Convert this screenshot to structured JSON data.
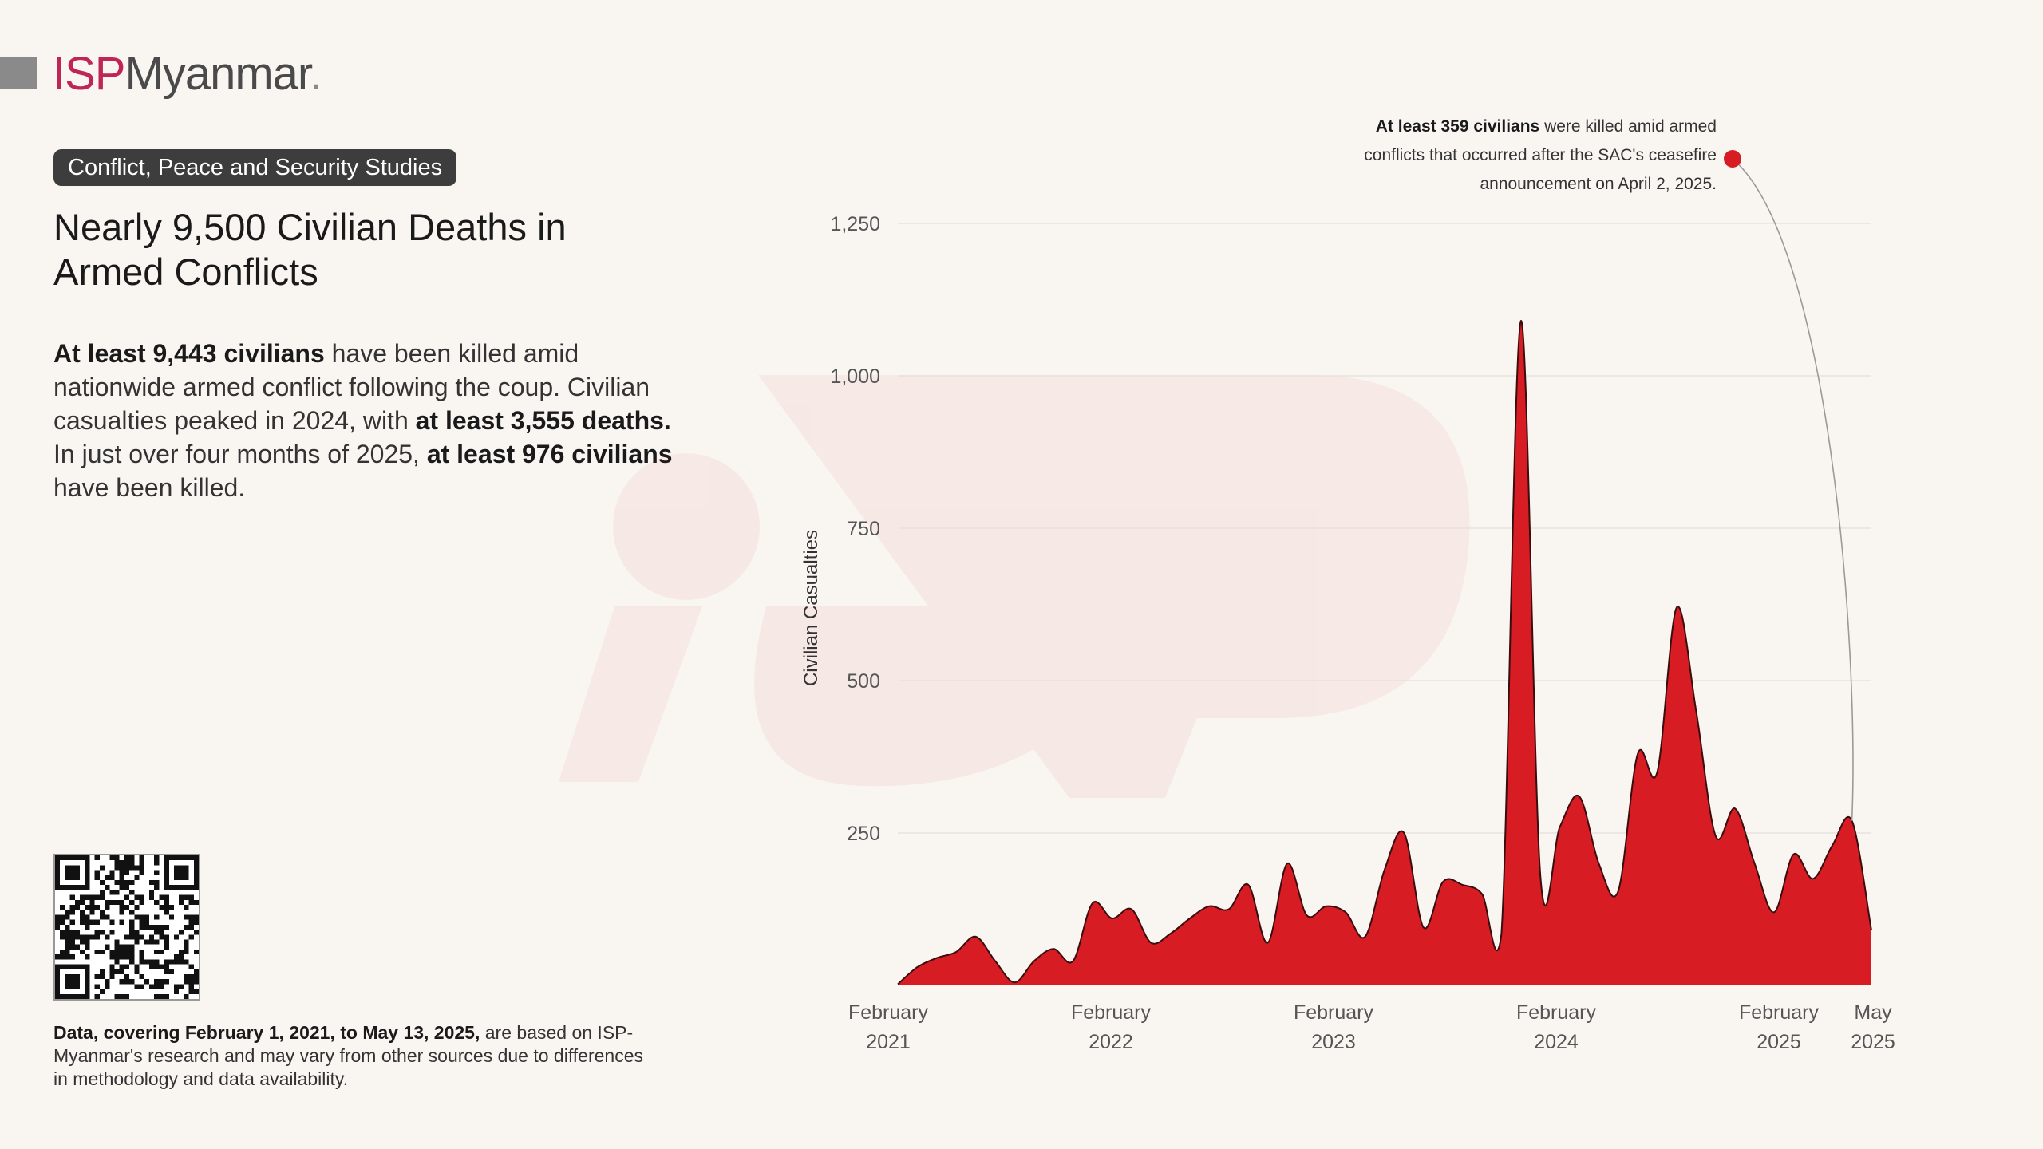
{
  "brand": {
    "name_part1": "ISP",
    "name_part2": "Myanmar",
    "dot": "."
  },
  "tag": "Conflict, Peace and Security Studies",
  "title": "Nearly 9,500 Civilian Deaths in Armed Conflicts",
  "summary": {
    "p1_bold": "At least 9,443 civilians",
    "p1_rest": " have been killed amid nationwide armed conflict following the coup. Civilian casualties peaked in 2024, with ",
    "p2_bold": "at least 3,555 deaths.",
    "p2_rest": " In just over four months of 2025, ",
    "p3_bold": "at least 976 civilians",
    "p3_rest": " have been killed."
  },
  "note": {
    "bold": "Data, covering February 1, 2021, to May 13, 2025,",
    "rest": " are based on ISP-Myanmar's research and may vary from other sources due to differences in methodology and data availability."
  },
  "annotation": {
    "bold": "At least 359 civilians",
    "line1_rest": " were killed amid armed",
    "line2": "conflicts that occurred after the SAC's ceasefire",
    "line3": "announcement on April 2, 2025."
  },
  "colors": {
    "area_fill": "#d71c24",
    "area_stroke": "#3a0d0e",
    "callout_dot": "#d71c24",
    "brand_red": "#c02557"
  },
  "chart_data": {
    "type": "area",
    "ylabel": "Civilian Casualties",
    "xlabel": "",
    "ylim": [
      0,
      1250
    ],
    "yticks": [
      250,
      500,
      750,
      1000,
      1250
    ],
    "ytick_labels": [
      "250",
      "500",
      "750",
      "1,000",
      "1,250"
    ],
    "xtick_labels": [
      {
        "line1": "February",
        "line2": "2021"
      },
      {
        "line1": "February",
        "line2": "2022"
      },
      {
        "line1": "February",
        "line2": "2023"
      },
      {
        "line1": "February",
        "line2": "2024"
      },
      {
        "line1": "February",
        "line2": "2025"
      },
      {
        "line1": "May",
        "line2": "2025"
      }
    ],
    "grid": true,
    "series": [
      {
        "values": [
          2,
          30,
          45,
          55,
          80,
          40,
          5,
          40,
          60,
          40,
          135,
          110,
          125,
          70,
          85,
          110,
          130,
          125,
          165,
          70,
          200,
          115,
          130,
          120,
          80,
          190,
          250,
          95,
          170,
          165,
          150,
          85,
          1090,
          180,
          260,
          310,
          200,
          155,
          380,
          350,
          620,
          450,
          245,
          290,
          200,
          120,
          215,
          175,
          230,
          270,
          90
        ]
      }
    ]
  }
}
